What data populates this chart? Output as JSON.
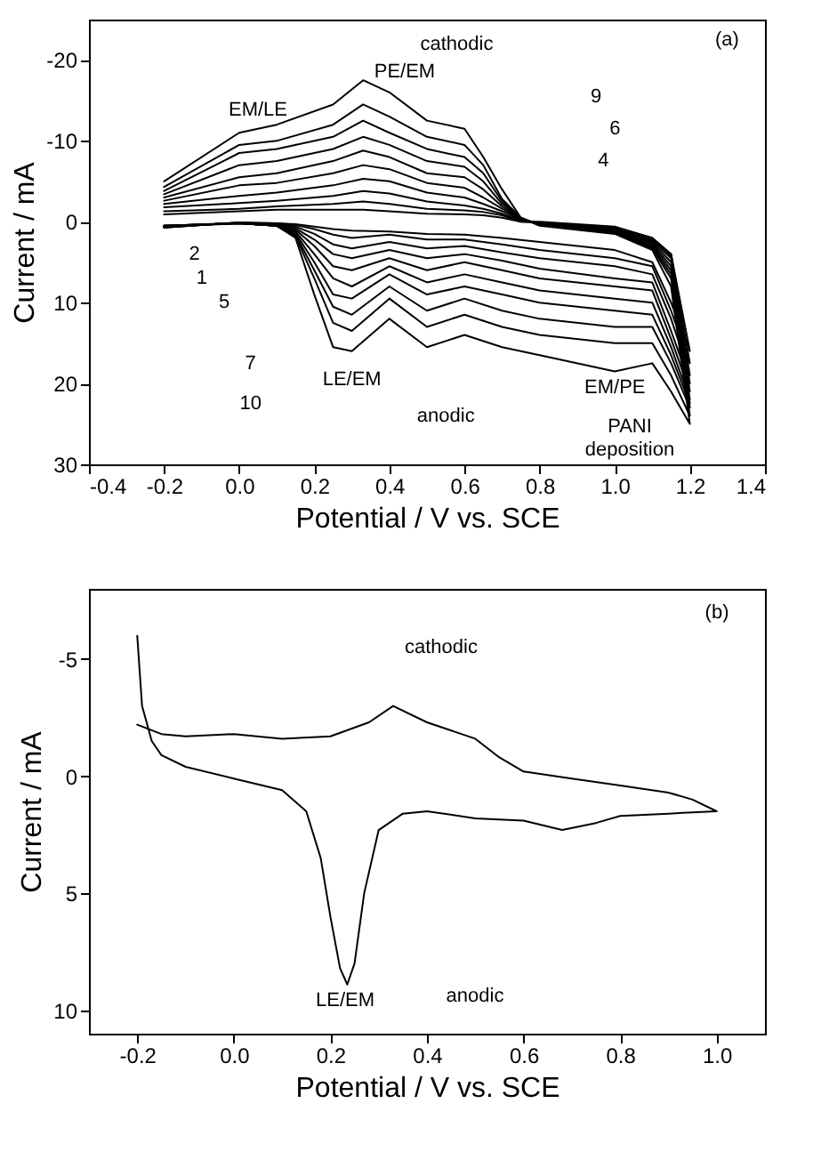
{
  "chart_data": [
    {
      "type": "line",
      "xlabel": "Potential / V vs. SCE",
      "ylabel": "Current / mA",
      "xlim": [
        -0.4,
        1.4
      ],
      "ylim": [
        30,
        -25
      ],
      "xticks": [
        {
          "value": -0.4,
          "label": "-0.4"
        },
        {
          "value": -0.2,
          "label": "-0.2"
        },
        {
          "value": 0.0,
          "label": "0.0"
        },
        {
          "value": 0.2,
          "label": "0.2"
        },
        {
          "value": 0.4,
          "label": "0.4"
        },
        {
          "value": 0.6,
          "label": "0.6"
        },
        {
          "value": 0.8,
          "label": "0.8"
        },
        {
          "value": 1.0,
          "label": "1.0"
        },
        {
          "value": 1.2,
          "label": "1.2"
        },
        {
          "value": 1.4,
          "label": "1.4"
        }
      ],
      "yticks": [
        -20,
        -10,
        0,
        10,
        20,
        30
      ],
      "x": [
        -0.2,
        0.0,
        0.1,
        0.15,
        0.2,
        0.25,
        0.3,
        0.4,
        0.5,
        0.6,
        0.7,
        0.8,
        1.0,
        1.1,
        1.15,
        1.2,
        1.15,
        1.1,
        1.0,
        0.8,
        0.75,
        0.7,
        0.65,
        0.6,
        0.5,
        0.4,
        0.33,
        0.25,
        0.1,
        0.0,
        -0.2
      ],
      "series": [
        {
          "color": "#000000",
          "values": [
            0.7,
            0.1,
            0.2,
            0.3,
            0.6,
            0.9,
            1.1,
            1.2,
            1.5,
            1.6,
            2,
            2.5,
            3.5,
            5,
            10,
            16,
            4,
            2,
            0.6,
            0,
            0,
            -0.5,
            -0.8,
            -0.9,
            -1,
            -1.3,
            -1.5,
            -1.5,
            -1.5,
            -1.3,
            -0.9
          ]
        },
        {
          "color": "#000000",
          "values": [
            0.7,
            0.1,
            0.2,
            0.4,
            0.9,
            1.6,
            2,
            1.6,
            2.2,
            2.2,
            2.8,
            3.5,
            4.5,
            5.5,
            11,
            17.5,
            4,
            2,
            0.7,
            0.1,
            0,
            -0.8,
            -1.2,
            -1.4,
            -1.6,
            -2.2,
            -2.5,
            -2.2,
            -1.9,
            -1.6,
            -1.3
          ]
        },
        {
          "color": "#000000",
          "values": [
            0.7,
            0.1,
            0.3,
            0.6,
            1.5,
            2.8,
            3.3,
            2.5,
            3.3,
            3,
            3.8,
            4.5,
            5.5,
            6.5,
            12,
            19,
            4.2,
            2.1,
            0.8,
            0.1,
            -0.1,
            -1,
            -1.6,
            -2,
            -2.5,
            -3.5,
            -3.8,
            -3.2,
            -2.6,
            -2.3,
            -1.8
          ]
        },
        {
          "color": "#000000",
          "values": [
            0.6,
            0.1,
            0.4,
            0.8,
            2.2,
            4,
            4.5,
            3.5,
            4.5,
            4,
            4.8,
            5.8,
            7,
            7.5,
            13.5,
            20,
            4.5,
            2.3,
            0.9,
            0.2,
            -0.2,
            -1.3,
            -2.2,
            -3,
            -3.6,
            -5,
            -5.3,
            -4.5,
            -3.6,
            -3.2,
            -2.2
          ]
        },
        {
          "color": "#000000",
          "values": [
            0.6,
            0.2,
            0.5,
            1.0,
            3,
            5.5,
            6,
            4.5,
            6,
            5,
            6,
            7,
            8,
            8.5,
            14.5,
            21,
            5,
            2.5,
            1,
            0.2,
            -0.3,
            -1.6,
            -3,
            -4.2,
            -4.8,
            -6.5,
            -7,
            -6,
            -4.8,
            -4.5,
            -2.6
          ]
        },
        {
          "color": "#000000",
          "values": [
            0.5,
            0.2,
            0.5,
            1.2,
            4,
            7,
            8,
            5.5,
            7.5,
            6.5,
            7.5,
            8.5,
            9.5,
            10,
            15.5,
            22,
            5.5,
            2.7,
            1.1,
            0.3,
            -0.3,
            -1.9,
            -4,
            -5.5,
            -6,
            -8,
            -8.8,
            -7.5,
            -6,
            -5.5,
            -3
          ]
        },
        {
          "color": "#000000",
          "values": [
            0.5,
            0.2,
            0.5,
            1.4,
            5,
            9,
            9.5,
            6.5,
            9,
            8,
            9,
            10,
            11,
            11.5,
            16.5,
            22.5,
            6,
            2.9,
            1.2,
            0.3,
            -0.4,
            -2.2,
            -5,
            -6.8,
            -7.5,
            -9.5,
            -10.5,
            -9,
            -7.5,
            -7,
            -3.4
          ]
        },
        {
          "color": "#000000",
          "values": [
            0.5,
            0.2,
            0.5,
            1.6,
            6,
            10.5,
            11.5,
            8,
            11,
            9.5,
            11,
            12,
            13,
            13,
            17.5,
            23,
            6.5,
            3.1,
            1.3,
            0.4,
            -0.4,
            -2.5,
            -6,
            -8,
            -9,
            -11,
            -12.5,
            -10.5,
            -9,
            -8.5,
            -3.8
          ]
        },
        {
          "color": "#000000",
          "values": [
            0.5,
            0.2,
            0.5,
            1.8,
            7,
            12.5,
            13.5,
            9.5,
            13,
            11.5,
            13,
            14,
            15,
            15,
            19,
            24,
            7,
            3.3,
            1.4,
            0.4,
            -0.5,
            -2.8,
            -7,
            -9.5,
            -10.5,
            -13,
            -14.5,
            -12,
            -10,
            -9.5,
            -4.3
          ]
        },
        {
          "color": "#000000",
          "values": [
            0.5,
            0.2,
            0.5,
            2,
            9,
            15.5,
            16,
            12,
            15.5,
            14,
            15.5,
            16.5,
            18.5,
            17.5,
            21,
            25,
            8,
            3.5,
            1.5,
            0.5,
            -0.5,
            -4,
            -8,
            -11.5,
            -12.5,
            -16,
            -17.5,
            -14.5,
            -12,
            -11,
            -5
          ]
        }
      ],
      "annotations": [
        "cathodic",
        "(a)",
        "PE/EM",
        "EM/LE",
        "9",
        "6",
        "4",
        "2",
        "1",
        "5",
        "7",
        "10",
        "LE/EM",
        "EM/PE",
        "anodic",
        "PANI\ndeposition"
      ]
    },
    {
      "type": "line",
      "xlabel": "Potential / V vs. SCE",
      "ylabel": "Current / mA",
      "xlim": [
        -0.3,
        1.1
      ],
      "ylim": [
        11,
        -8
      ],
      "xticks": [
        {
          "value": -0.2,
          "label": "-0.2"
        },
        {
          "value": 0.0,
          "label": "0.0"
        },
        {
          "value": 0.2,
          "label": "0.2"
        },
        {
          "value": 0.4,
          "label": "0.4"
        },
        {
          "value": 0.6,
          "label": "0.6"
        },
        {
          "value": 0.8,
          "label": "0.8"
        },
        {
          "value": 1.0,
          "label": "1.0"
        }
      ],
      "yticks": [
        -5,
        0,
        5,
        10
      ],
      "series": [
        {
          "color": "#000000",
          "x": [
            -0.2,
            -0.19,
            -0.17,
            -0.15,
            -0.1,
            0.0,
            0.1,
            0.15,
            0.18,
            0.2,
            0.22,
            0.235,
            0.25,
            0.27,
            0.3,
            0.35,
            0.4,
            0.5,
            0.6,
            0.68,
            0.75,
            0.8,
            0.9,
            1.0,
            0.95,
            0.9,
            0.8,
            0.7,
            0.6,
            0.55,
            0.5,
            0.4,
            0.33,
            0.28,
            0.2,
            0.1,
            0.0,
            -0.1,
            -0.15,
            -0.2
          ],
          "values": [
            -6,
            -3,
            -1.5,
            -0.9,
            -0.4,
            0.1,
            0.6,
            1.5,
            3.5,
            6,
            8.2,
            8.9,
            8,
            5,
            2.3,
            1.6,
            1.5,
            1.8,
            1.9,
            2.3,
            2.0,
            1.7,
            1.6,
            1.5,
            1.0,
            0.7,
            0.4,
            0.1,
            -0.2,
            -0.8,
            -1.6,
            -2.3,
            -3,
            -2.3,
            -1.7,
            -1.6,
            -1.8,
            -1.7,
            -1.8,
            -2.2
          ]
        }
      ],
      "annotations": [
        "(b)",
        "cathodic",
        "LE/EM",
        "anodic"
      ]
    }
  ]
}
